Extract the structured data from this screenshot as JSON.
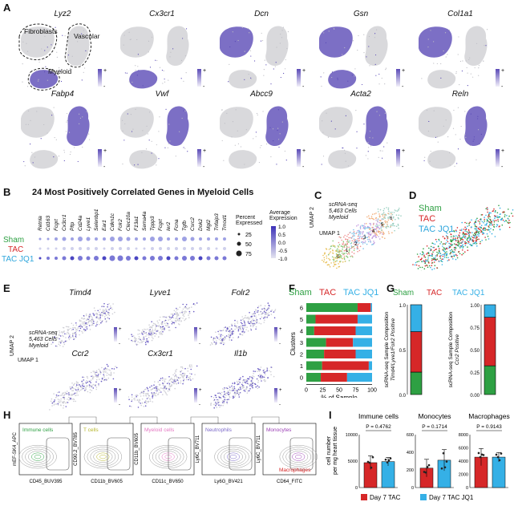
{
  "panels": {
    "A": {
      "letter": "A",
      "row1_genes": [
        "Lyz2",
        "Cx3cr1",
        "Dcn",
        "Gsn",
        "Col1a1"
      ],
      "row2_genes": [
        "Fabp4",
        "Vwf",
        "Abcc9",
        "Acta2",
        "Reln"
      ],
      "cluster_labels": {
        "fibroblasts": "Fibroblasts",
        "vascular": "Vascular",
        "myeloid": "Myeloid"
      },
      "scale_plus": "+",
      "scale_minus": "-"
    },
    "B": {
      "letter": "B",
      "title": "24 Most Positively Correlated Genes in Myeloid Cells",
      "genes": [
        "Retnla",
        "Cd163",
        "Fcgrt",
        "Cx3cr1",
        "Pltp",
        "Cd24a",
        "Lyve1",
        "Selenbp1",
        "Ear1",
        "Cdkn1c",
        "Folr2",
        "Clec10a",
        "F13a1",
        "Sema4a",
        "Tppp3",
        "Fcgrt",
        "Ier2",
        "Fcna",
        "Tgfb",
        "Csrc2",
        "Dok2",
        "Mgl2",
        "Tnfaip3",
        "Tmod1"
      ],
      "groups": [
        "Sham",
        "TAC",
        "TAC JQ1"
      ],
      "pct_title": "Percent Expressed",
      "pct_values": [
        "25",
        "50",
        "75"
      ],
      "avg_title": "Average Expression",
      "avg_ticks": [
        "1.0",
        "0.5",
        "0.0",
        "-0.5",
        "-1.0"
      ]
    },
    "C": {
      "letter": "C",
      "axis_y": "UMAP 2",
      "axis_x": "UMAP 1",
      "info1": "scRNA-seq",
      "info2": "5,463 Cells",
      "info3": "Myeloid"
    },
    "D": {
      "letter": "D",
      "legend": [
        "Sham",
        "TAC",
        "TAC JQ1"
      ]
    },
    "E": {
      "letter": "E",
      "row1_genes": [
        "Timd4",
        "Lyve1",
        "Folr2"
      ],
      "row2_genes": [
        "Ccr2",
        "Cx3cr1",
        "Il1b"
      ],
      "axis_y": "UMAP 2",
      "axis_x": "UMAP 1",
      "info1": "scRNA-seq",
      "info2": "5,463 Cells",
      "info3": "Myeloid"
    },
    "F": {
      "letter": "F",
      "legend": [
        "Sham",
        "TAC",
        "TAC JQ1"
      ]
    },
    "G": {
      "letter": "G",
      "legend": [
        "Sham",
        "TAC",
        "TAC JQ1"
      ],
      "left_ylabel_1": "scRNA-seq Sample Composition",
      "left_ylabel_2": "Timd4/Lyve1/Folr2 Positive",
      "right_ylabel_1": "scRNA-seq Sample Composition",
      "right_ylabel_2": "Ccr2 Positive",
      "left_ticks": [
        "1.0",
        "0.5",
        "0.0"
      ],
      "right_ticks": [
        "1.00",
        "0.75",
        "0.50",
        "0.25",
        "0.00"
      ]
    },
    "H": {
      "letter": "H",
      "plots": [
        {
          "ylabel": "mEF-SK4_APC",
          "xlabel": "CD45_BUV395",
          "gate": "Immune cells",
          "gate_color": "#2ea043"
        },
        {
          "ylabel": "CD90.2_BV785",
          "xlabel": "CD11b_BV605",
          "gate": "T cells",
          "gate_color": "#b5b52a"
        },
        {
          "ylabel": "CD11b_BV605",
          "xlabel": "CD11c_BV650",
          "gate": "Myeloid cells",
          "gate_color": "#e377c2"
        },
        {
          "ylabel": "Ly6C_BV711",
          "xlabel": "Ly6G_BV421",
          "gate": "Neutrophils",
          "gate_color": "#7b68c8"
        },
        {
          "ylabel": "Ly6C_BV711",
          "xlabel": "CD64_FITC",
          "gate": "Monocytes",
          "gate2": "Macrophages",
          "gate_color": "#9b3fb5",
          "gate2_color": "#d62728"
        }
      ]
    },
    "I": {
      "letter": "I",
      "ylabel_1": "cell number",
      "ylabel_2": "per mg heart tissue",
      "legend": [
        "Day 7 TAC",
        "Day 7 TAC JQ1"
      ]
    }
  },
  "chart_data": [
    {
      "type": "bar",
      "panel": "F",
      "orientation": "horizontal-stacked",
      "categories": [
        "6",
        "5",
        "4",
        "3",
        "2",
        "1",
        "0"
      ],
      "series": [
        {
          "name": "Sham",
          "values": [
            78,
            14,
            12,
            30,
            27,
            24,
            22
          ]
        },
        {
          "name": "TAC",
          "values": [
            20,
            64,
            63,
            41,
            48,
            71,
            40
          ]
        },
        {
          "name": "TAC JQ1",
          "values": [
            2,
            22,
            25,
            29,
            25,
            5,
            38
          ]
        }
      ],
      "xlabel": "% of Sample",
      "ylabel": "Clusters",
      "xlim": [
        0,
        100
      ],
      "xticks": [
        "0",
        "25",
        "50",
        "75",
        "100"
      ]
    },
    {
      "type": "bar",
      "panel": "G-left",
      "orientation": "vertical-stacked",
      "series": [
        {
          "name": "Sham",
          "values": [
            0.25
          ]
        },
        {
          "name": "TAC",
          "values": [
            0.45
          ]
        },
        {
          "name": "TAC JQ1",
          "values": [
            0.3
          ]
        }
      ],
      "ylim": [
        0,
        1
      ]
    },
    {
      "type": "bar",
      "panel": "G-right",
      "orientation": "vertical-stacked",
      "series": [
        {
          "name": "Sham",
          "values": [
            0.32
          ]
        },
        {
          "name": "TAC",
          "values": [
            0.54
          ]
        },
        {
          "name": "TAC JQ1",
          "values": [
            0.14
          ]
        }
      ],
      "ylim": [
        0,
        1
      ]
    },
    {
      "type": "bar",
      "panel": "I",
      "subplots": [
        {
          "title": "Immune cells",
          "pvalue": "P = 0.4762",
          "categories": [
            "Day 7 TAC",
            "Day 7 TAC JQ1"
          ],
          "values": [
            4700,
            4900
          ],
          "errors": [
            1300,
            800
          ],
          "ylim": [
            0,
            10000
          ],
          "yticks": [
            "0",
            "5000",
            "10000"
          ]
        },
        {
          "title": "Monocytes",
          "pvalue": "P = 0.1714",
          "categories": [
            "Day 7 TAC",
            "Day 7 TAC JQ1"
          ],
          "values": [
            220,
            310
          ],
          "errors": [
            100,
            120
          ],
          "ylim": [
            0,
            600
          ],
          "yticks": [
            "0",
            "200",
            "400",
            "600"
          ]
        },
        {
          "title": "Macrophages",
          "pvalue": "P = 0.9143",
          "categories": [
            "Day 7 TAC",
            "Day 7 TAC JQ1"
          ],
          "values": [
            4600,
            4600
          ],
          "errors": [
            1300,
            700
          ],
          "ylim": [
            0,
            8000
          ],
          "yticks": [
            "0",
            "2000",
            "4000",
            "6000",
            "8000"
          ]
        }
      ],
      "colors": {
        "Day 7 TAC": "#d62728",
        "Day 7 TAC JQ1": "#35b0e6"
      }
    }
  ],
  "colors": {
    "sham": "#2ea043",
    "tac": "#d62728",
    "jq1": "#35b0e6",
    "expr": "#5b4bb7",
    "umap_gray": "#d9d9dc"
  }
}
